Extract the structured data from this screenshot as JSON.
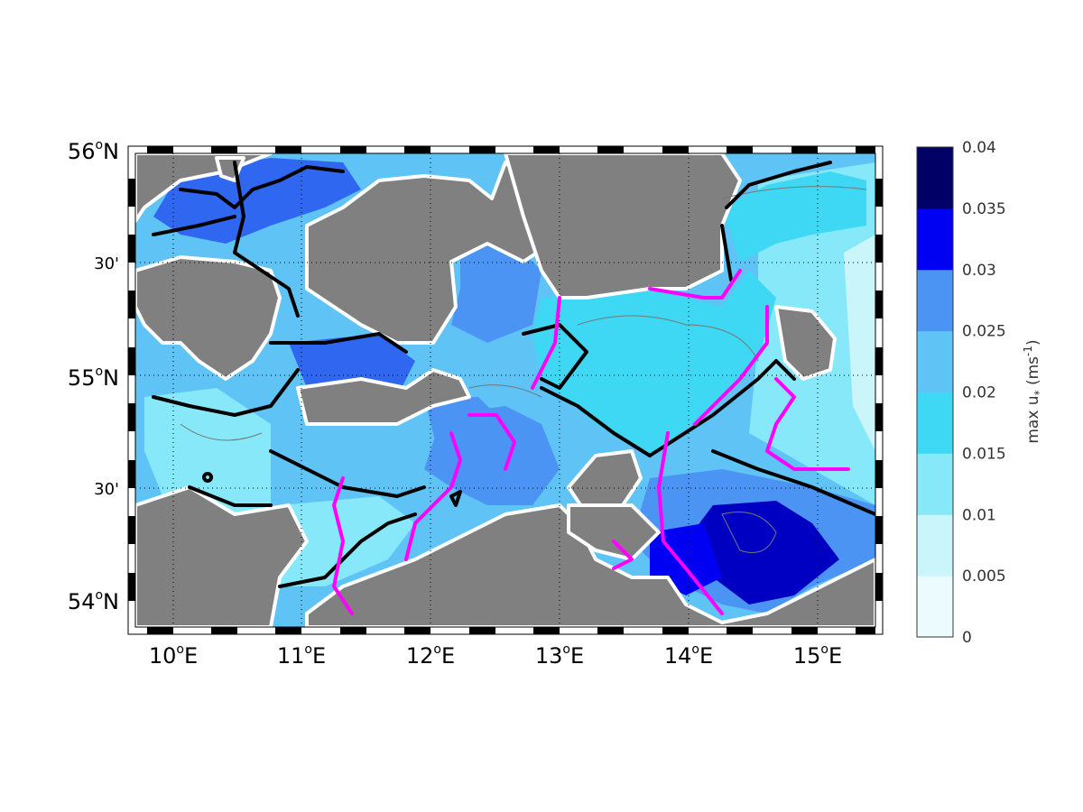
{
  "map": {
    "type": "contour-map",
    "region": "Western Baltic Sea",
    "lat_labels": [
      {
        "deg": "56",
        "suffix": "N",
        "sup": "o"
      },
      {
        "deg": "30'",
        "suffix": "",
        "sup": ""
      },
      {
        "deg": "55",
        "suffix": "N",
        "sup": "o"
      },
      {
        "deg": "30'",
        "suffix": "",
        "sup": ""
      },
      {
        "deg": "54",
        "suffix": "N",
        "sup": "o"
      }
    ],
    "lon_labels": [
      {
        "deg": "10",
        "sup": "o",
        "suffix": "E"
      },
      {
        "deg": "11",
        "sup": "o",
        "suffix": "E"
      },
      {
        "deg": "12",
        "sup": "o",
        "suffix": "E"
      },
      {
        "deg": "13",
        "sup": "o",
        "suffix": "E"
      },
      {
        "deg": "14",
        "sup": "o",
        "suffix": "E"
      },
      {
        "deg": "15",
        "sup": "o",
        "suffix": "E"
      }
    ],
    "lon_range": [
      9.7,
      15.45
    ],
    "lat_range": [
      53.93,
      56.0
    ],
    "land_color": "#808080",
    "contour_black_color": "#000000",
    "contour_magenta_color": "#ff00ff"
  },
  "colorbar": {
    "title_main": "max u",
    "title_sub": "*",
    "title_unit_open": "(ms",
    "title_unit_sup": "-1",
    "title_unit_close": ")",
    "levels": [
      "0",
      "0.005",
      "0.01",
      "0.015",
      "0.02",
      "0.025",
      "0.03",
      "0.035",
      "0.04"
    ],
    "colors": [
      "#ebfbfe",
      "#c9f5fb",
      "#86e8f8",
      "#3fd8f4",
      "#5fc3f6",
      "#4b94f3",
      "#3067f0",
      "#0000f2",
      "#0000c3",
      "#000066"
    ]
  }
}
